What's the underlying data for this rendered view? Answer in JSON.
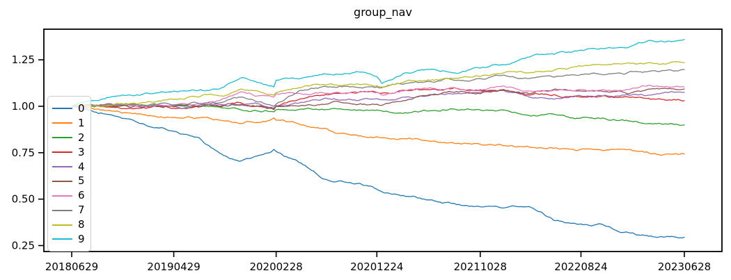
{
  "chart_data": {
    "type": "line",
    "title": "group_nav",
    "xlabel": "",
    "ylabel": "",
    "grid": false,
    "legend_position": "center left",
    "x_tick_labels": [
      "20180629",
      "20190429",
      "20200228",
      "20201224",
      "20211028",
      "20220824",
      "20230628"
    ],
    "y_tick_labels": [
      "0.25",
      "0.50",
      "0.75",
      "1.00",
      "1.25"
    ],
    "ylim": [
      0.218,
      1.415
    ],
    "x": [
      "20180629",
      "20180917",
      "20181113",
      "20190211",
      "20190429",
      "20190712",
      "20190912",
      "20191115",
      "20200214",
      "20200221",
      "20200228",
      "20200512",
      "20200713",
      "20201030",
      "20201224",
      "20210108",
      "20210319",
      "20210526",
      "20210812",
      "20211028",
      "20220106",
      "20220323",
      "20220610",
      "20220824",
      "20221028",
      "20221219",
      "20230320",
      "20230628"
    ],
    "series": [
      {
        "name": "0",
        "color": "#1f77b4",
        "values": [
          1.0,
          0.96,
          0.944,
          0.892,
          0.865,
          0.832,
          0.748,
          0.705,
          0.755,
          0.768,
          0.757,
          0.694,
          0.612,
          0.585,
          0.553,
          0.54,
          0.515,
          0.496,
          0.477,
          0.459,
          0.452,
          0.46,
          0.384,
          0.366,
          0.363,
          0.321,
          0.302,
          0.295
        ]
      },
      {
        "name": "1",
        "color": "#ff7f0e",
        "values": [
          1.0,
          0.985,
          0.974,
          0.948,
          0.94,
          0.937,
          0.925,
          0.907,
          0.93,
          0.937,
          0.925,
          0.9,
          0.881,
          0.84,
          0.836,
          0.83,
          0.825,
          0.813,
          0.8,
          0.795,
          0.787,
          0.78,
          0.776,
          0.769,
          0.761,
          0.769,
          0.743,
          0.743
        ]
      },
      {
        "name": "2",
        "color": "#2ca02c",
        "values": [
          1.0,
          1.0,
          1.0,
          1.0,
          1.002,
          0.998,
          0.996,
          0.981,
          0.972,
          0.97,
          0.981,
          0.985,
          0.985,
          0.98,
          0.98,
          0.975,
          0.966,
          0.974,
          0.985,
          0.98,
          0.98,
          0.95,
          0.955,
          0.937,
          0.937,
          0.925,
          0.907,
          0.899
        ]
      },
      {
        "name": "3",
        "color": "#d62728",
        "values": [
          1.0,
          1.0,
          0.995,
          0.992,
          0.99,
          0.995,
          1.0,
          1.019,
          0.99,
          0.981,
          1.0,
          1.041,
          1.06,
          1.075,
          1.075,
          1.07,
          1.086,
          1.09,
          1.1,
          1.086,
          1.09,
          1.06,
          1.06,
          1.049,
          1.056,
          1.049,
          1.037,
          1.03
        ]
      },
      {
        "name": "4",
        "color": "#9467bd",
        "values": [
          1.0,
          1.002,
          1.005,
          1.0,
          1.0,
          1.005,
          1.01,
          1.011,
          0.995,
          0.99,
          1.004,
          1.022,
          1.037,
          1.03,
          1.041,
          1.035,
          1.049,
          1.056,
          1.067,
          1.075,
          1.086,
          1.049,
          1.041,
          1.056,
          1.056,
          1.056,
          1.06,
          1.075
        ]
      },
      {
        "name": "5",
        "color": "#8c564b",
        "values": [
          1.0,
          1.0,
          1.0,
          0.998,
          0.998,
          1.0,
          1.0,
          1.007,
          0.988,
          0.985,
          1.0,
          1.004,
          1.011,
          1.01,
          1.011,
          1.005,
          1.03,
          1.06,
          1.075,
          1.067,
          1.086,
          1.067,
          1.093,
          1.082,
          1.08,
          1.082,
          1.093,
          1.093
        ]
      },
      {
        "name": "6",
        "color": "#e377c2",
        "values": [
          1.0,
          1.003,
          1.005,
          1.002,
          1.005,
          1.015,
          1.03,
          1.078,
          1.052,
          1.049,
          1.067,
          1.067,
          1.075,
          1.075,
          1.075,
          1.06,
          1.086,
          1.097,
          1.1,
          1.09,
          1.11,
          1.082,
          1.086,
          1.09,
          1.09,
          1.086,
          1.112,
          1.104
        ]
      },
      {
        "name": "7",
        "color": "#7f7f7f",
        "values": [
          1.0,
          1.005,
          1.01,
          1.005,
          1.008,
          1.015,
          1.019,
          1.049,
          1.005,
          1.0,
          1.011,
          1.086,
          1.104,
          1.1,
          1.104,
          1.1,
          1.123,
          1.134,
          1.14,
          1.149,
          1.168,
          1.149,
          1.16,
          1.171,
          1.17,
          1.179,
          1.19,
          1.198
        ]
      },
      {
        "name": "8",
        "color": "#bcbd22",
        "values": [
          1.0,
          1.0,
          1.015,
          1.025,
          1.037,
          1.049,
          1.056,
          1.093,
          1.063,
          1.06,
          1.075,
          1.1,
          1.116,
          1.12,
          1.11,
          1.104,
          1.134,
          1.142,
          1.15,
          1.16,
          1.18,
          1.18,
          1.198,
          1.216,
          1.224,
          1.228,
          1.235,
          1.235
        ]
      },
      {
        "name": "9",
        "color": "#17becf",
        "values": [
          1.0,
          1.03,
          1.056,
          1.07,
          1.082,
          1.086,
          1.093,
          1.153,
          1.11,
          1.104,
          1.14,
          1.15,
          1.17,
          1.185,
          1.16,
          1.123,
          1.18,
          1.198,
          1.18,
          1.205,
          1.224,
          1.265,
          1.284,
          1.302,
          1.31,
          1.317,
          1.354,
          1.36
        ]
      }
    ]
  }
}
